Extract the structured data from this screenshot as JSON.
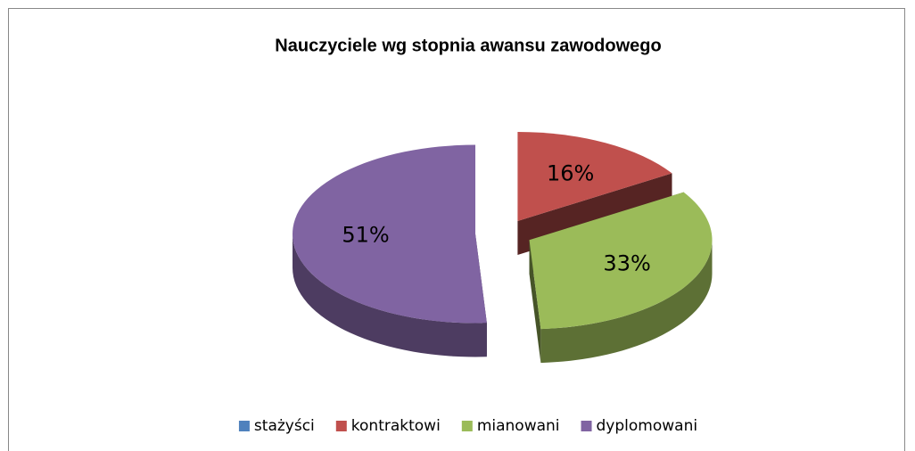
{
  "chart_data": {
    "type": "pie",
    "title": "Nauczyciele wg stopnia awansu zawodowego",
    "categories": [
      "stażyści",
      "kontraktowi",
      "mianowani",
      "dyplomowani"
    ],
    "values": [
      0,
      16,
      33,
      51
    ],
    "value_labels": [
      null,
      "16%",
      "33%",
      "51%"
    ],
    "colors": [
      "#4f81bd",
      "#c0504d",
      "#9bbb59",
      "#8064a2"
    ],
    "legend": "bottom",
    "exploded": true,
    "3d": true
  }
}
